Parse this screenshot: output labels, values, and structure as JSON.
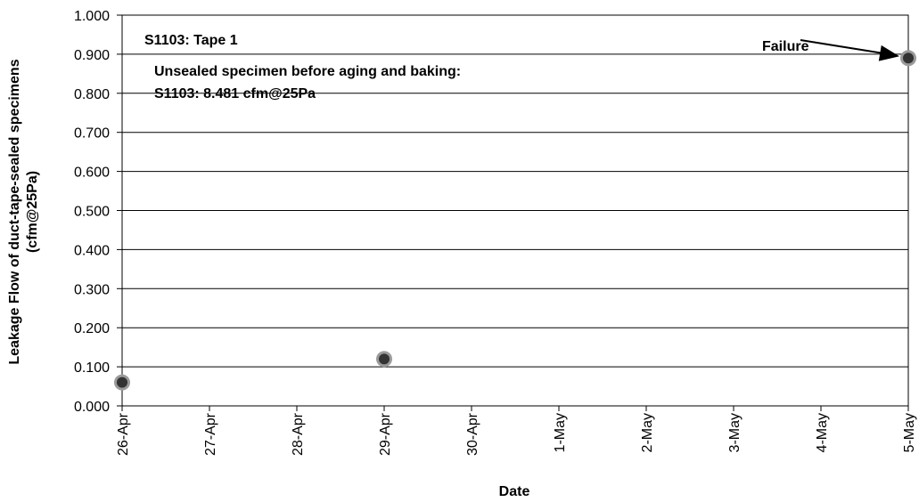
{
  "chart_data": {
    "type": "scatter",
    "xlabel": "Date",
    "ylabel": [
      "Leakage Flow of duct-tape-sealed specimens",
      "(cfm@25Pa)"
    ],
    "categories": [
      "26-Apr",
      "27-Apr",
      "28-Apr",
      "29-Apr",
      "30-Apr",
      "1-May",
      "2-May",
      "3-May",
      "4-May",
      "5-May"
    ],
    "y_ticks": [
      "0.000",
      "0.100",
      "0.200",
      "0.300",
      "0.400",
      "0.500",
      "0.600",
      "0.700",
      "0.800",
      "0.900",
      "1.000"
    ],
    "ylim": [
      0,
      1.0
    ],
    "grid": true,
    "series": [
      {
        "x": [
          "26-Apr",
          "29-Apr",
          "5-May"
        ],
        "y": [
          0.06,
          0.12,
          0.89
        ]
      }
    ],
    "annotations": {
      "title_note": "S1103: Tape 1",
      "note_line1": "Unsealed specimen before aging and baking:",
      "note_line2": "S1103: 8.481 cfm@25Pa",
      "failure_label": "Failure",
      "failure_point": {
        "x": "5-May",
        "y": 0.89
      }
    },
    "colors": {
      "marker": "#333333",
      "marker_halo": "#9a9a9a",
      "grid": "#000000"
    }
  }
}
